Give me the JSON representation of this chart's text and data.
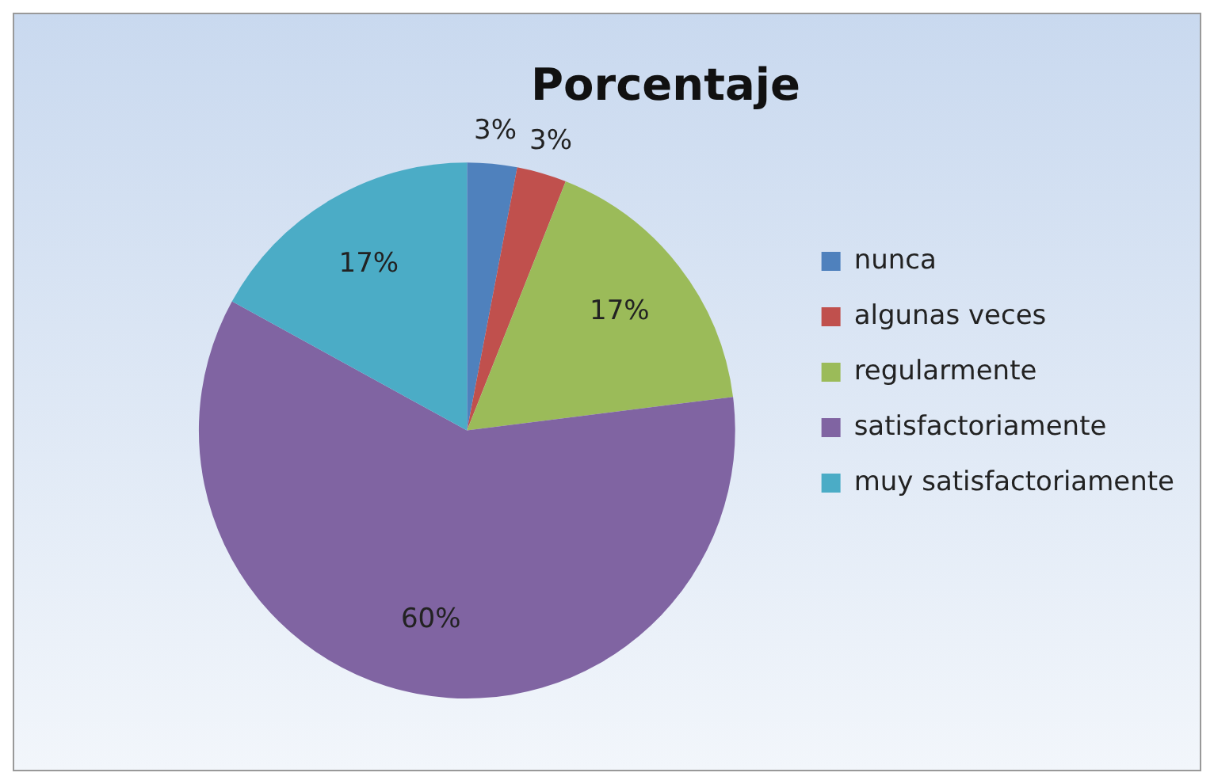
{
  "chart_data": {
    "type": "pie",
    "title": "Porcentaje",
    "categories": [
      "nunca",
      "algunas veces",
      "regularmente",
      "satisfactoriamente",
      "muy satisfactoriamente"
    ],
    "values": [
      3,
      3,
      17,
      60,
      17
    ],
    "colors": [
      "#4f81bd",
      "#c0504d",
      "#9bbb59",
      "#8064a2",
      "#4bacc6"
    ],
    "value_labels": [
      "3%",
      "3%",
      "17%",
      "60%",
      "17%"
    ],
    "legend": "right"
  }
}
